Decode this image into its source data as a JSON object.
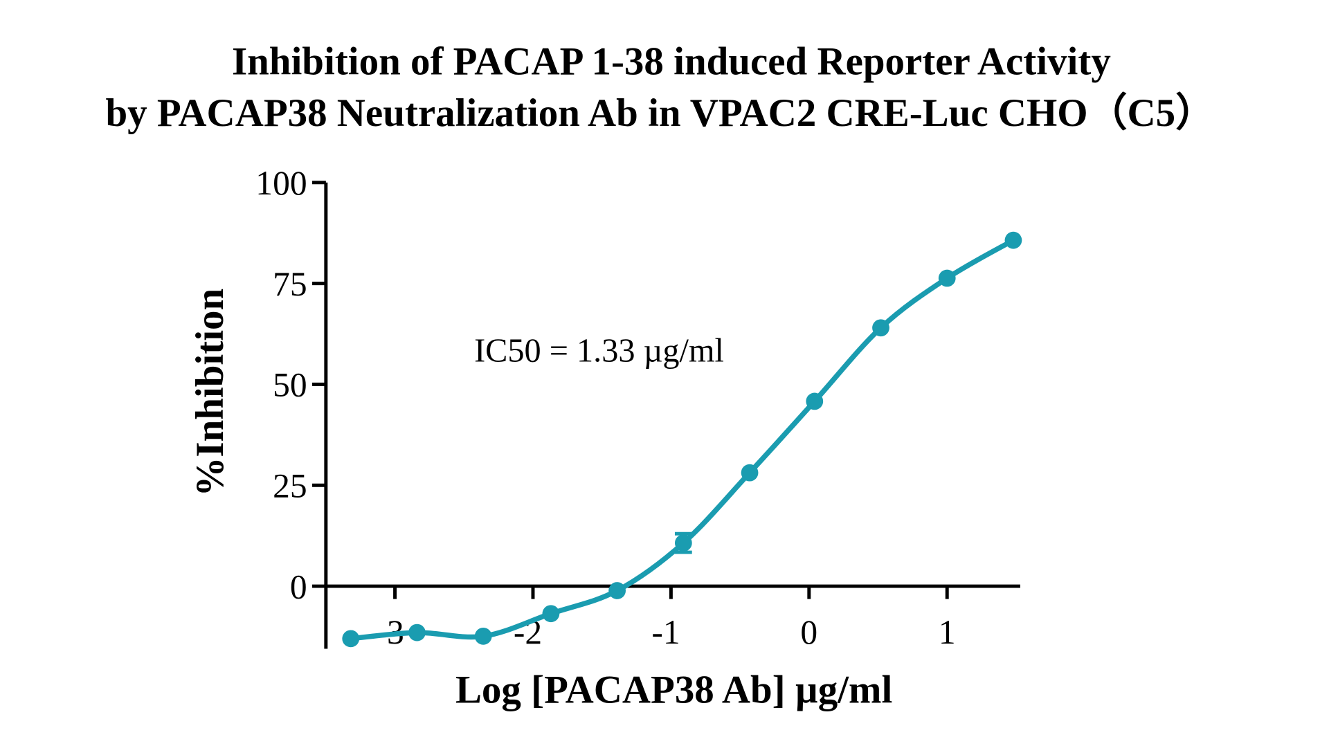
{
  "chart_data": {
    "type": "scatter",
    "title": [
      "Inhibition of PACAP 1-38 induced Reporter Activity",
      "by PACAP38 Neutralization Ab in VPAC2 CRE-Luc CHO（C5）"
    ],
    "xlabel": "Log [PACAP38 Ab] µg/ml",
    "ylabel": "%Inhibition",
    "xlim": [
      -3.5,
      1.53
    ],
    "ylim": [
      -15.5,
      100
    ],
    "xticks": [
      "-3",
      "-2",
      "-1",
      "0",
      "1"
    ],
    "xtick_values": [
      -3,
      -2,
      -1,
      0,
      1
    ],
    "yticks": [
      "0",
      "25",
      "50",
      "75",
      "100"
    ],
    "ytick_values": [
      0,
      25,
      50,
      75,
      100
    ],
    "grid": false,
    "annotation": "IC50 = 1.33 µg/ml",
    "color": "#1a9cb0",
    "series": [
      {
        "x": [
          -3.32,
          -2.84,
          -2.36,
          -1.87,
          -1.39,
          -0.91,
          -0.43,
          0.04,
          0.52,
          1.0,
          1.48
        ],
        "y": [
          -13.0,
          -11.5,
          -12.4,
          -6.8,
          -1.1,
          10.7,
          28.1,
          45.8,
          64.0,
          76.3,
          85.7
        ],
        "error": [
          0,
          0,
          0,
          0,
          0,
          2.3,
          0,
          0,
          0,
          0,
          0
        ],
        "fit": "sigmoidal dose-response curve"
      }
    ]
  }
}
